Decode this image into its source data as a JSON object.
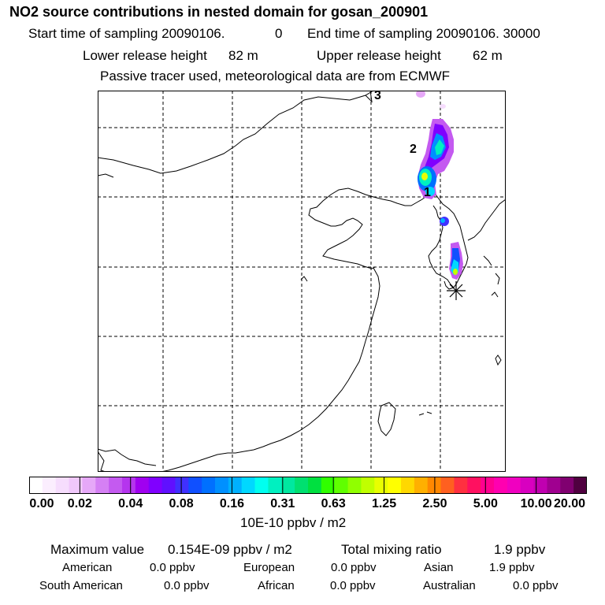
{
  "header": {
    "title": "NO2 source contributions in nested domain for gosan_200901",
    "start_label": "Start time of sampling 20090106.",
    "start_value": "0",
    "end_label": "End time of sampling 20090106. 30000",
    "lower_label": "Lower release height",
    "lower_value": "82 m",
    "upper_label": "Upper release height",
    "upper_value": "62 m",
    "note": "Passive tracer used, meteorological data are from ECMWF"
  },
  "map": {
    "markers": [
      "3",
      "2",
      "1"
    ],
    "station_symbol": "asterisk"
  },
  "legend": {
    "ticks": [
      "0.00",
      "0.02",
      "0.04",
      "0.08",
      "0.16",
      "0.31",
      "0.63",
      "1.25",
      "2.50",
      "5.00",
      "10.00",
      "20.00"
    ],
    "colors": [
      "#ffffff",
      "#fbeefe",
      "#f6ddfd",
      "#f0c8fb",
      "#e6a8f8",
      "#d580f4",
      "#c45af0",
      "#b535ee",
      "#a000f0",
      "#8000ff",
      "#6010ff",
      "#4030ff",
      "#1050ff",
      "#0070ff",
      "#0090ff",
      "#00b0ff",
      "#00d8ff",
      "#00fff0",
      "#00f0c0",
      "#00e8a0",
      "#00e070",
      "#00e040",
      "#30ff00",
      "#60ff00",
      "#90ff00",
      "#c0ff00",
      "#e8ff00",
      "#ffff00",
      "#ffd800",
      "#ffb000",
      "#ff8800",
      "#ff6020",
      "#ff3040",
      "#ff1060",
      "#ff0090",
      "#ff00b0",
      "#f000c0",
      "#d800c0",
      "#c000b0",
      "#a00090",
      "#800070",
      "#500040"
    ],
    "unit": "10E-10 ppbv / m2"
  },
  "stats": {
    "max_label": "Maximum value",
    "max_value": "0.154E-09 ppbv / m2",
    "total_label": "Total mixing ratio",
    "total_value": "1.9 ppbv",
    "regions": [
      {
        "name": "American",
        "value": "0.0 ppbv"
      },
      {
        "name": "European",
        "value": "0.0 ppbv"
      },
      {
        "name": "Asian",
        "value": "1.9 ppbv"
      },
      {
        "name": "South American",
        "value": "0.0 ppbv"
      },
      {
        "name": "African",
        "value": "0.0 ppbv"
      },
      {
        "name": "Australian",
        "value": "0.0 ppbv"
      }
    ]
  }
}
